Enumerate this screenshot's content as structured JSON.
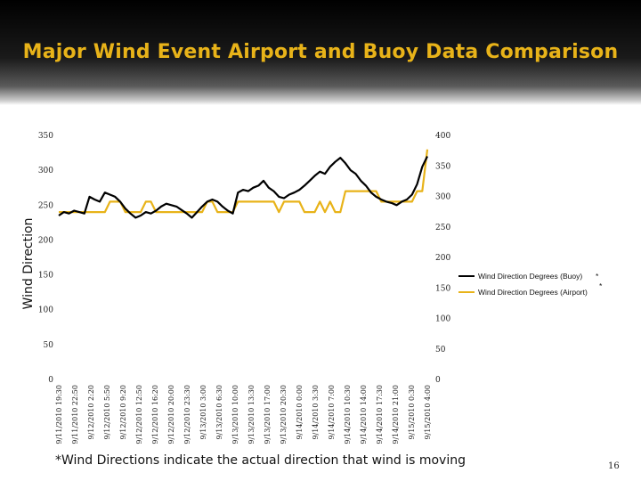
{
  "chart_data": {
    "type": "line",
    "title": "Major Wind Event Airport and Buoy Data Comparison",
    "ylabel": "Wind Direction",
    "y_left": {
      "ylim": [
        0,
        350
      ],
      "ticks": [
        0,
        50,
        100,
        150,
        200,
        250,
        300,
        350
      ]
    },
    "y_right": {
      "ylim": [
        0,
        400
      ],
      "ticks": [
        0,
        50,
        100,
        150,
        200,
        250,
        300,
        350,
        400
      ]
    },
    "x_tick_labels": [
      "9/11/2010 19:30",
      "9/11/2010 22:50",
      "9/12/2010 2:20",
      "9/12/2010 5:50",
      "9/12/2010 9:20",
      "9/12/2010 12:50",
      "9/12/2010 16:20",
      "9/12/2010 20:00",
      "9/12/2010 23:30",
      "9/13/2010 3:00",
      "9/13/2010 6:30",
      "9/13/2010 10:00",
      "9/13/2010 13:30",
      "9/13/2010 17:00",
      "9/13/2010 20:30",
      "9/14/2010 0:00",
      "9/14/2010 3:30",
      "9/14/2010 7:00",
      "9/14/2010 10:30",
      "9/14/2010 14:00",
      "9/14/2010 17:30",
      "9/14/2010 21:00",
      "9/15/2010 0:30",
      "9/15/2010 4:00"
    ],
    "series": [
      {
        "name": "Wind Direction Degrees (Buoy)",
        "axis": "left",
        "color": "#000000",
        "values": [
          235,
          240,
          238,
          242,
          240,
          238,
          262,
          258,
          255,
          268,
          265,
          262,
          255,
          245,
          238,
          232,
          235,
          240,
          238,
          242,
          248,
          252,
          250,
          248,
          243,
          238,
          232,
          240,
          248,
          255,
          258,
          255,
          248,
          242,
          238,
          268,
          272,
          270,
          275,
          278,
          285,
          275,
          270,
          262,
          260,
          265,
          268,
          272,
          278,
          285,
          292,
          298,
          295,
          305,
          312,
          318,
          310,
          300,
          295,
          285,
          278,
          268,
          262,
          258,
          255,
          253,
          250,
          255,
          258,
          265,
          280,
          305,
          320
        ]
      },
      {
        "name": "Wind Direction Degrees (Airport)",
        "axis": "left",
        "color": "#e8b319",
        "values": [
          240,
          240,
          240,
          240,
          240,
          240,
          240,
          240,
          240,
          240,
          255,
          255,
          255,
          240,
          240,
          240,
          240,
          255,
          255,
          240,
          240,
          240,
          240,
          240,
          240,
          240,
          240,
          240,
          240,
          255,
          255,
          240,
          240,
          240,
          240,
          255,
          255,
          255,
          255,
          255,
          255,
          255,
          255,
          240,
          255,
          255,
          255,
          255,
          240,
          240,
          240,
          255,
          240,
          255,
          240,
          240,
          270,
          270,
          270,
          270,
          270,
          270,
          270,
          255,
          255,
          255,
          255,
          255,
          255,
          255,
          270,
          270,
          330
        ]
      }
    ],
    "legend": {
      "position": "right",
      "asterisk": "*"
    }
  },
  "footnote": "*Wind Directions indicate the actual direction that wind is moving",
  "page_number": "16"
}
